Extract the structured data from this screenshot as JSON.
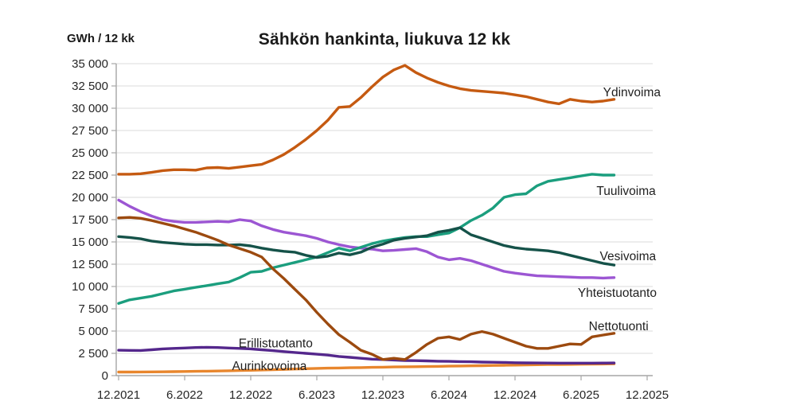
{
  "chart_data": {
    "type": "line",
    "title": "Sähkön hankinta, liukuva 12 kk",
    "unit_label": "GWh / 12 kk",
    "x_start": "12.2021",
    "x_end_of_data": "9.2025",
    "x_axis_months_total": 48,
    "x_tick_labels": [
      "12.2021",
      "6.2022",
      "12.2022",
      "6.2023",
      "12.2023",
      "6.2024",
      "12.2024",
      "6.2025",
      "12.2025"
    ],
    "ylim": [
      0,
      35000
    ],
    "y_tick_step": 2500,
    "y_tick_labels": [
      "0",
      "2 500",
      "5 000",
      "7 500",
      "10 000",
      "12 500",
      "15 000",
      "17 500",
      "20 000",
      "22 500",
      "25 000",
      "27 500",
      "30 000",
      "32 500",
      "35 000"
    ],
    "grid": true,
    "legend": "inline-labels",
    "series": [
      {
        "name": "Yhteistuotanto",
        "color": "#9C56D3",
        "label_month": 41.7,
        "label_value": 9300,
        "values": [
          19700,
          19000,
          18400,
          17900,
          17500,
          17300,
          17200,
          17200,
          17250,
          17300,
          17250,
          17500,
          17350,
          16800,
          16400,
          16100,
          15900,
          15700,
          15400,
          15000,
          14700,
          14450,
          14300,
          14200,
          14000,
          14050,
          14150,
          14250,
          13900,
          13300,
          13000,
          13150,
          12900,
          12500,
          12100,
          11700,
          11500,
          11350,
          11200,
          11150,
          11100,
          11050,
          11000,
          11000,
          10950,
          11000
        ]
      },
      {
        "name": "Tuulivoima",
        "color": "#1B9E7E",
        "label_month": 43.4,
        "label_value": 20700,
        "values": [
          8100,
          8500,
          8700,
          8900,
          9200,
          9500,
          9700,
          9900,
          10100,
          10300,
          10500,
          11000,
          11600,
          11700,
          12100,
          12400,
          12700,
          13000,
          13300,
          13800,
          14300,
          14000,
          14400,
          14800,
          15100,
          15300,
          15500,
          15600,
          15600,
          15800,
          16000,
          16600,
          17400,
          18000,
          18800,
          20000,
          20300,
          20400,
          21300,
          21800,
          22000,
          22200,
          22400,
          22600,
          22500,
          22500
        ]
      },
      {
        "name": "Vesivoima",
        "color": "#155249",
        "label_month": 43.7,
        "label_value": 13400,
        "values": [
          15600,
          15500,
          15350,
          15100,
          14950,
          14850,
          14750,
          14700,
          14700,
          14650,
          14650,
          14700,
          14550,
          14300,
          14100,
          13950,
          13850,
          13500,
          13250,
          13400,
          13750,
          13550,
          13850,
          14400,
          14750,
          15200,
          15400,
          15550,
          15700,
          16100,
          16300,
          16600,
          15800,
          15400,
          15000,
          14600,
          14350,
          14200,
          14100,
          14000,
          13800,
          13500,
          13200,
          12900,
          12600,
          12400
        ]
      },
      {
        "name": "Aurinkovoima",
        "color": "#E8862D",
        "label_month": 10.3,
        "label_value": 1070,
        "values": [
          400,
          405,
          410,
          420,
          430,
          445,
          460,
          480,
          500,
          520,
          545,
          570,
          600,
          630,
          660,
          700,
          740,
          780,
          810,
          840,
          860,
          880,
          900,
          930,
          950,
          970,
          990,
          1000,
          1020,
          1040,
          1060,
          1080,
          1100,
          1120,
          1140,
          1160,
          1180,
          1200,
          1220,
          1240,
          1250,
          1260,
          1280,
          1290,
          1300,
          1320
        ]
      },
      {
        "name": "Erillistuotanto",
        "color": "#54278C",
        "label_month": 10.9,
        "label_value": 3600,
        "values": [
          2850,
          2830,
          2820,
          2900,
          3000,
          3050,
          3100,
          3150,
          3180,
          3150,
          3100,
          3050,
          3000,
          2900,
          2800,
          2700,
          2600,
          2500,
          2400,
          2300,
          2150,
          2050,
          1950,
          1850,
          1800,
          1750,
          1700,
          1680,
          1650,
          1620,
          1600,
          1570,
          1550,
          1520,
          1500,
          1480,
          1450,
          1430,
          1420,
          1410,
          1400,
          1400,
          1400,
          1400,
          1410,
          1420
        ]
      },
      {
        "name": "Nettotuonti",
        "color": "#9C4A0F",
        "label_month": 42.7,
        "label_value": 5550,
        "values": [
          17700,
          17750,
          17650,
          17400,
          17100,
          16800,
          16450,
          16100,
          15650,
          15200,
          14650,
          14250,
          13850,
          13300,
          12000,
          10900,
          9700,
          8500,
          7100,
          5800,
          4600,
          3750,
          2850,
          2400,
          1800,
          1950,
          1800,
          2600,
          3500,
          4200,
          4350,
          4050,
          4650,
          4950,
          4650,
          4200,
          3750,
          3300,
          3050,
          3050,
          3300,
          3550,
          3500,
          4350,
          4550,
          4750
        ]
      },
      {
        "name": "Ydinvoima",
        "color": "#C55A11",
        "label_month": 44.0,
        "label_value": 31800,
        "values": [
          22600,
          22600,
          22650,
          22800,
          23000,
          23100,
          23100,
          23050,
          23300,
          23350,
          23250,
          23400,
          23550,
          23700,
          24200,
          24800,
          25600,
          26500,
          27500,
          28650,
          30100,
          30200,
          31200,
          32400,
          33500,
          34300,
          34800,
          34000,
          33400,
          32900,
          32500,
          32200,
          32000,
          31900,
          31800,
          31700,
          31500,
          31300,
          31000,
          30700,
          30500,
          31000,
          30800,
          30700,
          30800,
          31000
        ]
      }
    ]
  },
  "colors": {
    "background": "#FFFFFF",
    "grid": "#DBDBDB",
    "axis": "#A6A6A6",
    "tick_text": "#262626",
    "label_text": "#1F1F1F"
  }
}
